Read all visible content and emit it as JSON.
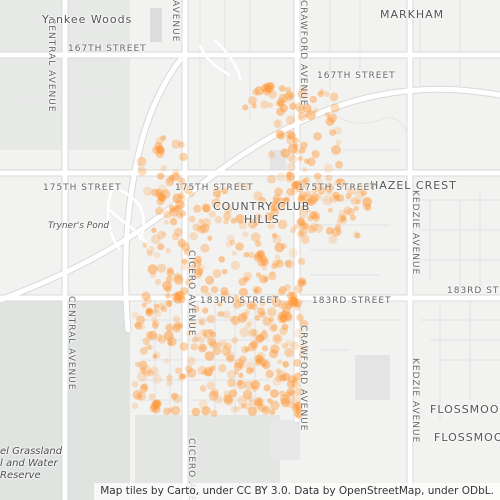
{
  "places": {
    "yankee_woods": "Yankee Woods",
    "markham": "MARKHAM",
    "hazel_crest": "HAZEL CREST",
    "country_club_hills_line1": "COUNTRY CLUB",
    "country_club_hills_line2": "HILLS",
    "flossmoor_1": "FLOSSMOOR",
    "flossmoor_2": "FLOSSMOOR"
  },
  "streets": {
    "s167_west": "167TH STREET",
    "s167_east": "167TH STREET",
    "s175_west": "175TH STREET",
    "s175_mid": "175TH STREET",
    "s175_east": "175TH STREET",
    "s183_mid": "183RD STREET",
    "s183_east": "183RD STREET",
    "s183_far": "183RD STRE",
    "central_north": "CENTRAL AVENUE",
    "central_south": "CENTRAL AVENUE",
    "cicero_north": "CICERO AVENUE",
    "cicero_south": "CICERO AVENUE",
    "crawford_north": "CRAWFORD AVENUE",
    "crawford_south": "CRAWFORD AVENUE",
    "kedzie_north": "KEDZIE AVENUE",
    "kedzie_south": "KEDZIE AVENUE",
    "avenue_top": "AVENUE"
  },
  "water": {
    "tryners_pond": "Tryner's Pond"
  },
  "park": {
    "line1": "el Grassland",
    "line2": "l and Water",
    "line3": "Reserve"
  },
  "attribution": "Map tiles by Carto, under CC BY 3.0. Data by OpenStreetMap, under ODbL.",
  "colors": {
    "background": "#f2f2f0",
    "road": "#ffffff",
    "road_outline": "#d8d8d8",
    "park": "#dfe3df",
    "marker": "#ff9a3c"
  }
}
